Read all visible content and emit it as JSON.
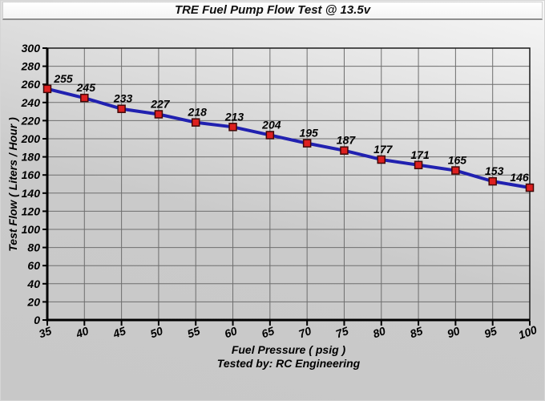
{
  "title": "TRE Fuel Pump Flow Test @ 13.5v",
  "chart_data": {
    "type": "line",
    "title": "TRE Fuel Pump Flow Test @ 13.5v",
    "x": [
      35,
      40,
      45,
      50,
      55,
      60,
      65,
      70,
      75,
      80,
      85,
      90,
      95,
      100
    ],
    "values": [
      255,
      245,
      233,
      227,
      218,
      213,
      204,
      195,
      187,
      177,
      171,
      165,
      153,
      146
    ],
    "xlabel": "Fuel Pressure ( psig )",
    "ylabel": "Test Flow ( Liters / Hour )",
    "annotation": "Tested by: RC Engineering",
    "xlim": [
      35,
      100
    ],
    "ylim": [
      0,
      300
    ],
    "x_tick_step": 5,
    "y_tick_step": 20,
    "grid": true,
    "legend": false,
    "colors": {
      "line": "#2121b0",
      "marker_fill": "#dd2020",
      "marker_border": "#400808",
      "grid": "#6e6e6e",
      "axis": "#000000",
      "plot_border": "#1a1a1a"
    }
  }
}
